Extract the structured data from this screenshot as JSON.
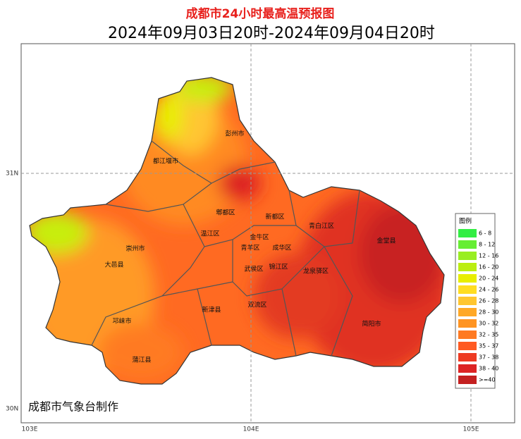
{
  "title": "成都市24小时最高温预报图",
  "subtitle": "2024年09月03日20时-2024年09月04日20时",
  "axes": {
    "y_labels": [
      "31N",
      "30N"
    ],
    "x_labels": [
      "103E",
      "104E",
      "105E"
    ]
  },
  "legend": {
    "title": "图例",
    "items": [
      {
        "label": "6 - 8",
        "color": "#33ee44"
      },
      {
        "label": "8 - 12",
        "color": "#66ee33"
      },
      {
        "label": "12 - 16",
        "color": "#99ee22"
      },
      {
        "label": "16 - 20",
        "color": "#bbee11"
      },
      {
        "label": "20 - 24",
        "color": "#e8ee00"
      },
      {
        "label": "24 - 26",
        "color": "#ffdd22"
      },
      {
        "label": "26 - 28",
        "color": "#ffc630"
      },
      {
        "label": "28 - 30",
        "color": "#ffa826"
      },
      {
        "label": "30 - 32",
        "color": "#ff9422"
      },
      {
        "label": "32 - 35",
        "color": "#ff7a22"
      },
      {
        "label": "35 - 37",
        "color": "#ff5a22"
      },
      {
        "label": "37 - 38",
        "color": "#ee3a22"
      },
      {
        "label": "38 - 40",
        "color": "#dd2424"
      },
      {
        "label": ">=40",
        "color": "#c42020"
      }
    ]
  },
  "places": [
    "彭州市",
    "都江堰市",
    "郫都区",
    "新都区",
    "温江区",
    "金牛区",
    "青白江区",
    "金堂县",
    "崇州市",
    "青羊区",
    "成华区",
    "大邑县",
    "武侯区",
    "锦江区",
    "龙泉驿区",
    "新津县",
    "双流区",
    "邛崃市",
    "简阳市",
    "蒲江县"
  ],
  "credit": "成都市气象台制作"
}
